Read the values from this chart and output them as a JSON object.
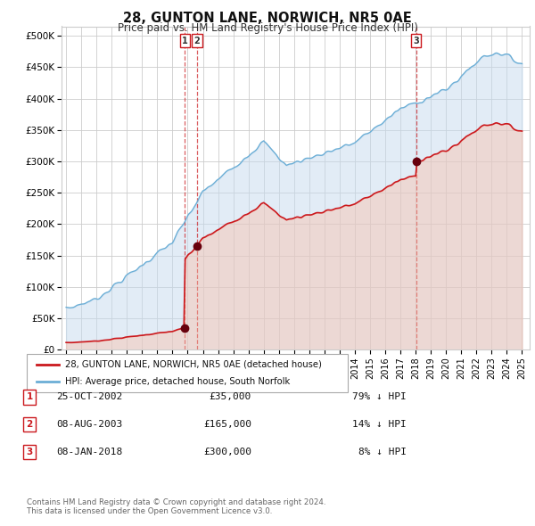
{
  "title": "28, GUNTON LANE, NORWICH, NR5 0AE",
  "subtitle": "Price paid vs. HM Land Registry's House Price Index (HPI)",
  "ylabel_ticks": [
    "£0",
    "£50K",
    "£100K",
    "£150K",
    "£200K",
    "£250K",
    "£300K",
    "£350K",
    "£400K",
    "£450K",
    "£500K"
  ],
  "ytick_values": [
    0,
    50000,
    100000,
    150000,
    200000,
    250000,
    300000,
    350000,
    400000,
    450000,
    500000
  ],
  "ylim": [
    0,
    515000
  ],
  "xlim_start": 1994.7,
  "xlim_end": 2025.5,
  "hpi_color": "#6baed6",
  "hpi_fill_color": "#c6dbef",
  "price_color": "#cb181d",
  "sale_marker_color": "#67000d",
  "vline_color": "#cb181d",
  "background_color": "#ffffff",
  "grid_color": "#cccccc",
  "transactions": [
    {
      "id": 1,
      "date_label": "25-OCT-2002",
      "year": 2002.82,
      "price": 35000,
      "pct": "79%",
      "direction": "↓"
    },
    {
      "id": 2,
      "date_label": "08-AUG-2003",
      "year": 2003.6,
      "price": 165000,
      "pct": "14%",
      "direction": "↓"
    },
    {
      "id": 3,
      "date_label": "08-JAN-2018",
      "year": 2018.03,
      "price": 300000,
      "pct": "8%",
      "direction": "↓"
    }
  ],
  "legend_label_price": "28, GUNTON LANE, NORWICH, NR5 0AE (detached house)",
  "legend_label_hpi": "HPI: Average price, detached house, South Norfolk",
  "footer_line1": "Contains HM Land Registry data © Crown copyright and database right 2024.",
  "footer_line2": "This data is licensed under the Open Government Licence v3.0.",
  "xtick_years": [
    1995,
    1996,
    1997,
    1998,
    1999,
    2000,
    2001,
    2002,
    2003,
    2004,
    2005,
    2006,
    2007,
    2008,
    2009,
    2010,
    2011,
    2012,
    2013,
    2014,
    2015,
    2016,
    2017,
    2018,
    2019,
    2020,
    2021,
    2022,
    2023,
    2024,
    2025
  ]
}
